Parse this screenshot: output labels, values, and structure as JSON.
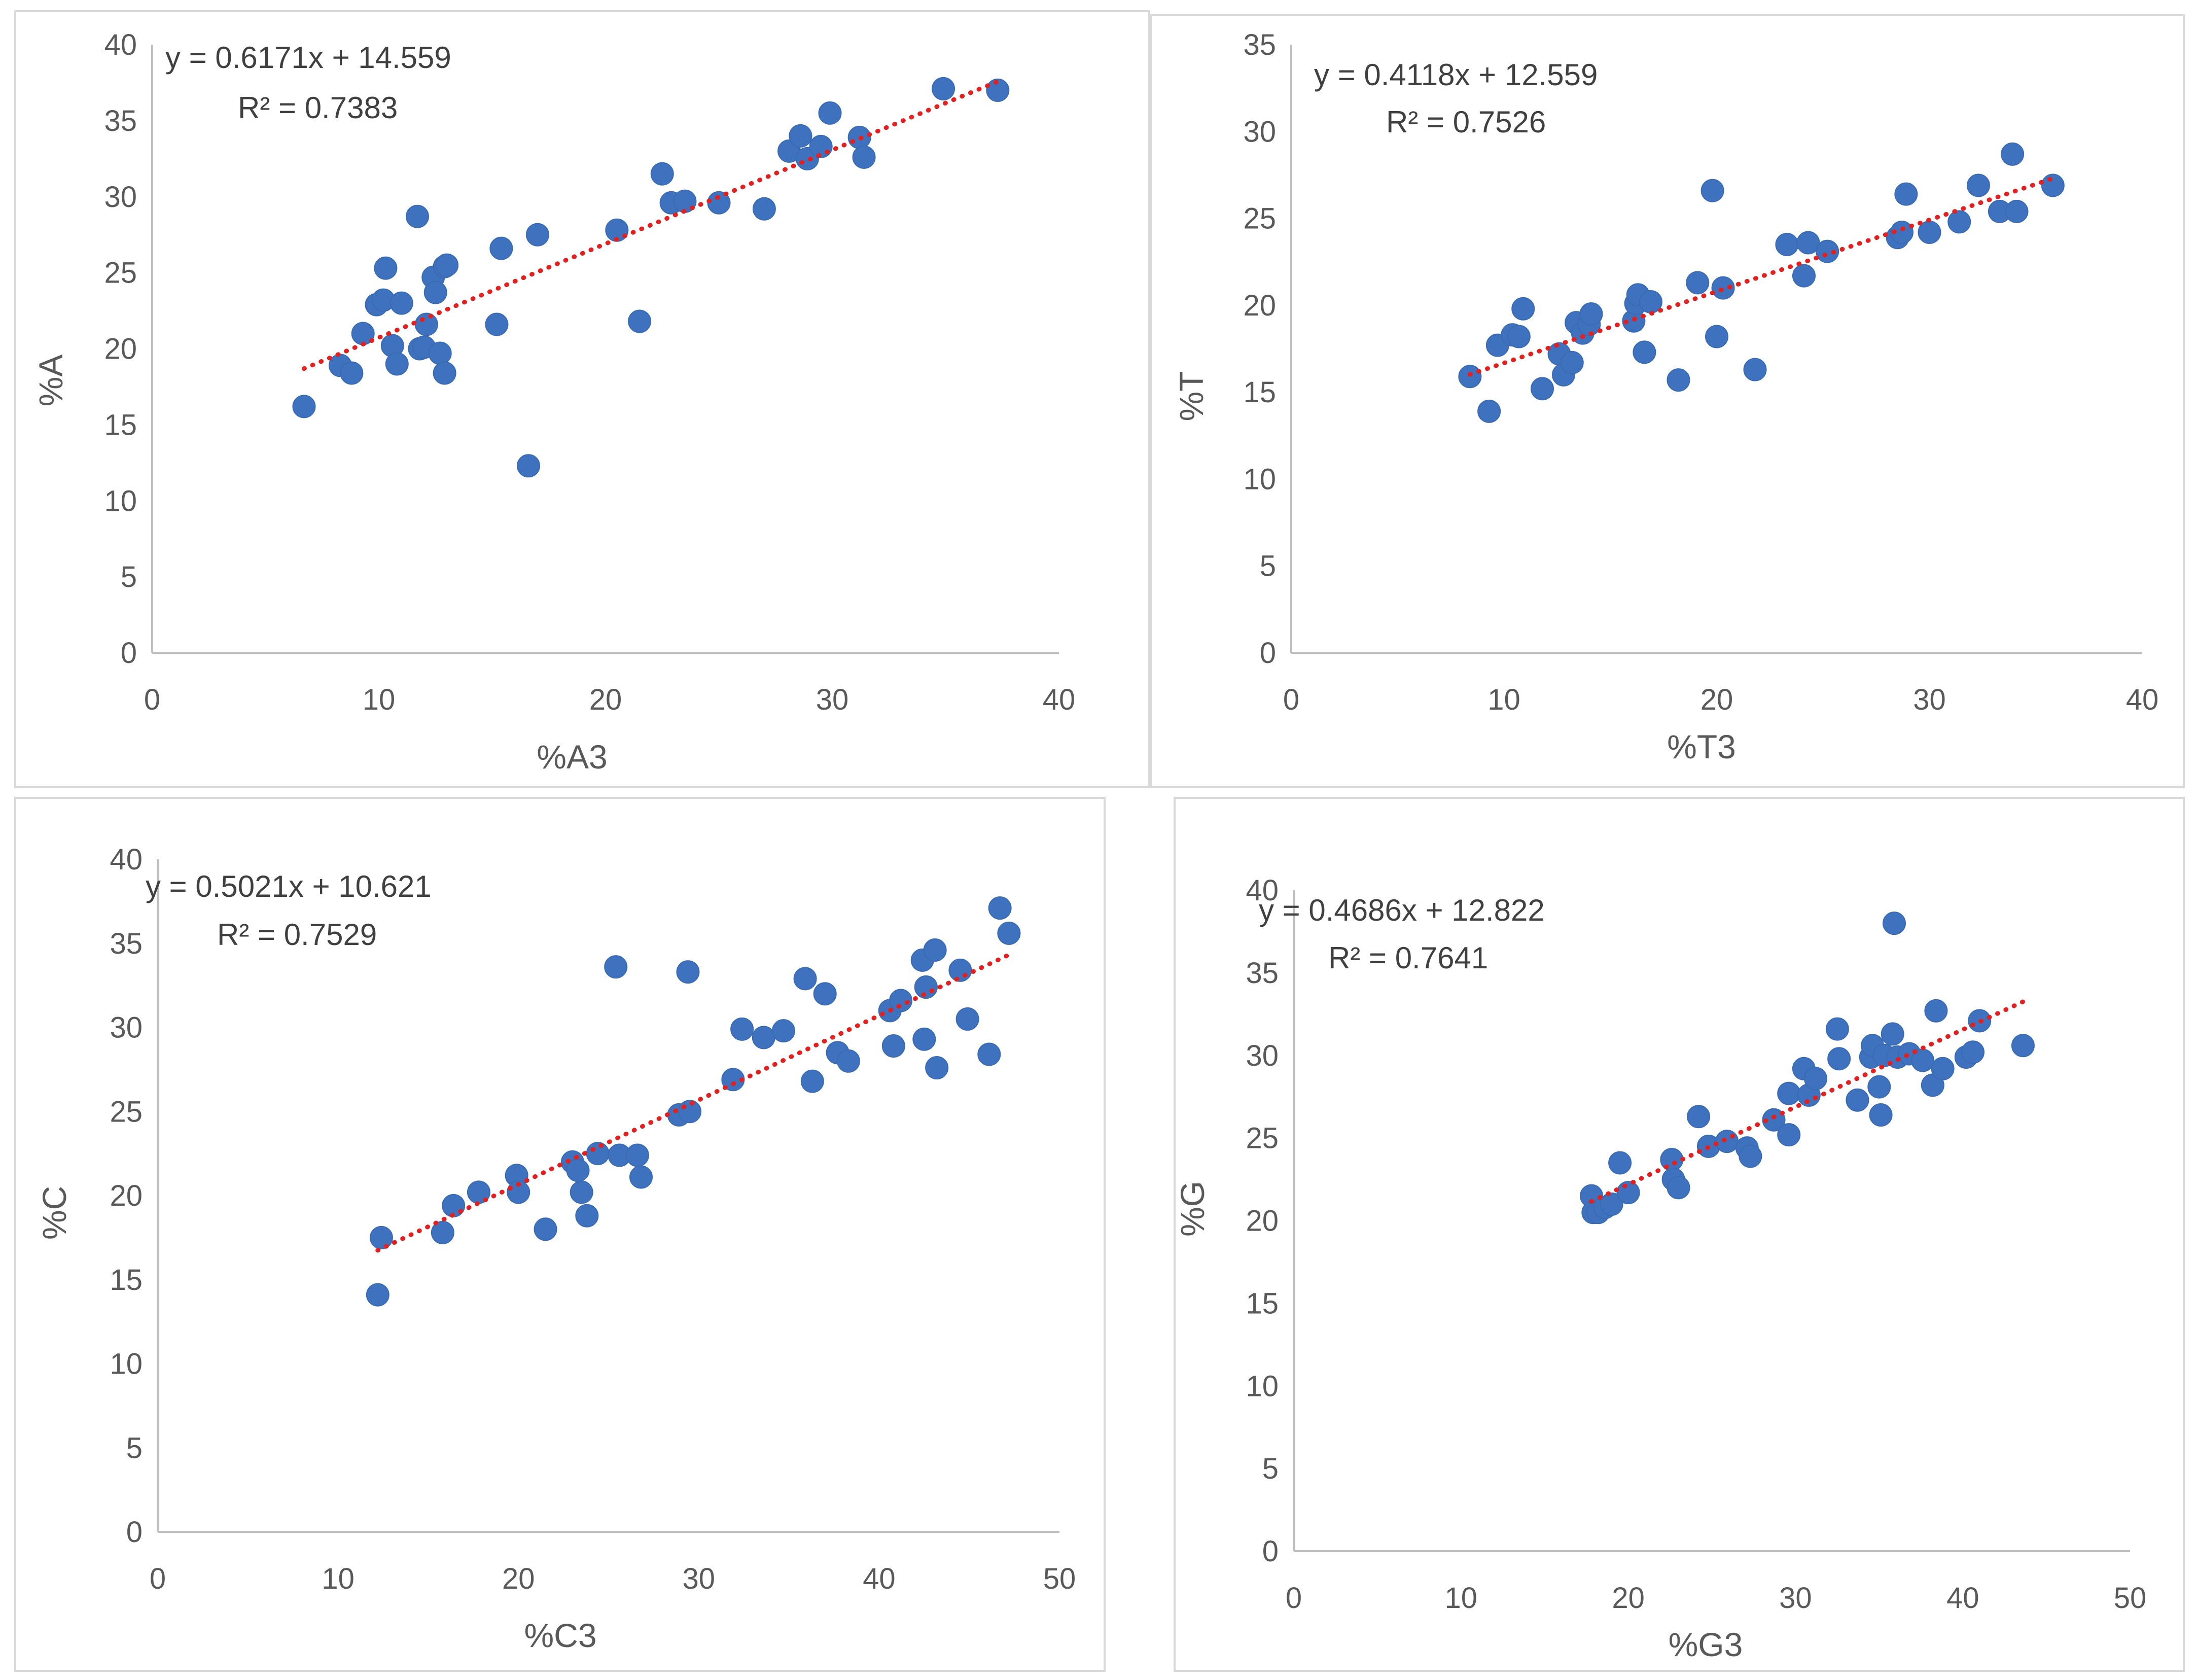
{
  "chart_data": [
    {
      "id": "A",
      "type": "scatter",
      "xlabel": "%A3",
      "ylabel": "%A",
      "xlim": [
        0,
        40
      ],
      "ylim": [
        0,
        40
      ],
      "xticks": [
        "0",
        "10",
        "20",
        "30",
        "40"
      ],
      "yticks": [
        "0",
        "5",
        "10",
        "15",
        "20",
        "25",
        "30",
        "35",
        "40"
      ],
      "equation": "y = 0.6171x + 14.559",
      "r_squared": "R² = 0.7383",
      "trendline": {
        "slope": 0.6171,
        "intercept": 14.559,
        "x_range": [
          6.7,
          37.3
        ],
        "color": "#e32020"
      },
      "marker_color": "#3f72be",
      "x": [
        6.7,
        8.3,
        8.8,
        9.3,
        9.9,
        10.2,
        10.3,
        10.6,
        10.8,
        11.0,
        11.7,
        11.8,
        12.0,
        12.1,
        12.4,
        12.5,
        12.7,
        12.9,
        12.9,
        13.0,
        15.2,
        15.4,
        16.6,
        17.0,
        20.5,
        21.5,
        22.5,
        22.9,
        23.5,
        25.0,
        27.0,
        28.1,
        28.6,
        28.9,
        29.5,
        29.9,
        31.2,
        31.4,
        34.9,
        37.3
      ],
      "y": [
        16.2,
        18.9,
        18.4,
        21.0,
        22.9,
        23.2,
        25.3,
        20.2,
        19.0,
        23.0,
        28.7,
        20.0,
        20.1,
        21.6,
        24.7,
        23.7,
        19.7,
        25.4,
        18.4,
        25.5,
        21.6,
        26.6,
        12.3,
        27.5,
        27.8,
        21.8,
        31.5,
        29.6,
        29.7,
        29.6,
        29.2,
        33.0,
        34.0,
        32.5,
        33.3,
        35.5,
        33.9,
        32.6,
        37.1,
        37.0
      ]
    },
    {
      "id": "T",
      "type": "scatter",
      "xlabel": "%T3",
      "ylabel": "%T",
      "xlim": [
        0,
        40
      ],
      "ylim": [
        0,
        35
      ],
      "xticks": [
        "0",
        "10",
        "20",
        "30",
        "40"
      ],
      "yticks": [
        "0",
        "5",
        "10",
        "15",
        "20",
        "25",
        "30",
        "35"
      ],
      "equation": "y = 0.4118x + 12.559",
      "r_squared": "R² = 0.7526",
      "trendline": {
        "slope": 0.4118,
        "intercept": 12.559,
        "x_range": [
          8.4,
          35.8
        ],
        "color": "#e32020"
      },
      "marker_color": "#3f72be",
      "x": [
        8.4,
        9.3,
        9.7,
        10.4,
        10.7,
        10.9,
        11.8,
        12.6,
        12.8,
        13.2,
        13.4,
        13.7,
        14.0,
        14.1,
        16.1,
        16.2,
        16.3,
        16.6,
        16.9,
        18.2,
        19.1,
        19.8,
        20.0,
        20.3,
        21.8,
        23.3,
        24.1,
        24.3,
        25.2,
        28.5,
        28.7,
        28.9,
        30.0,
        31.4,
        32.3,
        33.3,
        33.9,
        34.1,
        35.8
      ],
      "y": [
        15.9,
        13.9,
        17.7,
        18.3,
        18.2,
        19.8,
        15.2,
        17.2,
        16.0,
        16.7,
        19.0,
        18.4,
        18.9,
        19.5,
        19.1,
        20.1,
        20.6,
        17.3,
        20.2,
        15.7,
        21.3,
        26.6,
        18.2,
        21.0,
        16.3,
        23.5,
        21.7,
        23.6,
        23.1,
        23.9,
        24.2,
        26.4,
        24.2,
        24.8,
        26.9,
        25.4,
        28.7,
        25.4,
        26.9
      ]
    },
    {
      "id": "C",
      "type": "scatter",
      "xlabel": "%C3",
      "ylabel": "%C",
      "xlim": [
        0,
        50
      ],
      "ylim": [
        0,
        40
      ],
      "xticks": [
        "0",
        "10",
        "20",
        "30",
        "40",
        "50"
      ],
      "yticks": [
        "0",
        "5",
        "10",
        "15",
        "20",
        "25",
        "30",
        "35",
        "40"
      ],
      "equation": "y = 0.5021x + 10.621",
      "r_squared": "R² = 0.7529",
      "trendline": {
        "slope": 0.5021,
        "intercept": 10.621,
        "x_range": [
          12.2,
          47.3
        ],
        "color": "#e32020"
      },
      "marker_color": "#3f72be",
      "x": [
        12.2,
        12.4,
        15.8,
        16.4,
        17.8,
        19.9,
        20.0,
        21.5,
        23.0,
        23.3,
        23.5,
        23.8,
        24.4,
        25.4,
        25.6,
        26.6,
        26.8,
        28.9,
        29.4,
        29.5,
        31.9,
        32.4,
        33.6,
        34.7,
        35.9,
        36.3,
        37.0,
        37.7,
        38.3,
        40.6,
        40.8,
        41.2,
        42.4,
        42.5,
        42.6,
        42.6,
        43.1,
        43.2,
        44.5,
        44.9,
        46.1,
        46.7,
        47.2
      ],
      "y": [
        14.1,
        17.5,
        17.8,
        19.4,
        20.2,
        21.2,
        20.2,
        18.0,
        22.0,
        21.5,
        20.2,
        18.8,
        22.5,
        33.6,
        22.4,
        22.4,
        21.1,
        24.8,
        33.3,
        25.0,
        26.9,
        29.9,
        29.4,
        29.8,
        32.9,
        26.8,
        32.0,
        28.5,
        28.0,
        31.0,
        28.9,
        31.6,
        34.0,
        29.3,
        32.4,
        32.4,
        34.6,
        27.6,
        33.4,
        30.5,
        28.4,
        37.1,
        35.6
      ]
    },
    {
      "id": "G",
      "type": "scatter",
      "xlabel": "%G3",
      "ylabel": "%G",
      "xlim": [
        0,
        50
      ],
      "ylim": [
        0,
        40
      ],
      "xticks": [
        "0",
        "10",
        "20",
        "30",
        "40",
        "50"
      ],
      "yticks": [
        "0",
        "5",
        "10",
        "15",
        "20",
        "25",
        "30",
        "35",
        "40"
      ],
      "equation": "y = 0.4686x + 12.822",
      "r_squared": "R² = 0.7641",
      "trendline": {
        "slope": 0.4686,
        "intercept": 12.822,
        "x_range": [
          17.8,
          43.6
        ],
        "color": "#e32020"
      },
      "marker_color": "#3f72be",
      "x": [
        17.8,
        17.9,
        18.2,
        18.6,
        19.0,
        19.5,
        20.0,
        22.6,
        22.7,
        23.0,
        24.2,
        24.8,
        25.9,
        27.1,
        27.3,
        28.7,
        29.6,
        29.6,
        30.5,
        30.8,
        31.2,
        32.5,
        32.6,
        33.7,
        34.5,
        34.6,
        35.0,
        35.1,
        35.3,
        35.8,
        35.9,
        36.1,
        36.8,
        37.6,
        38.2,
        38.4,
        38.8,
        40.2,
        40.6,
        41.0,
        43.6
      ],
      "y": [
        21.5,
        20.5,
        20.5,
        20.8,
        21.0,
        23.5,
        21.7,
        23.7,
        22.5,
        22.0,
        26.3,
        24.5,
        24.8,
        24.4,
        23.9,
        26.1,
        25.2,
        27.7,
        29.2,
        27.6,
        28.6,
        31.6,
        29.8,
        27.3,
        29.9,
        30.6,
        28.1,
        26.4,
        30.0,
        31.3,
        38.0,
        29.9,
        30.1,
        29.7,
        28.2,
        32.7,
        29.2,
        29.9,
        30.2,
        32.1,
        30.6
      ]
    }
  ]
}
